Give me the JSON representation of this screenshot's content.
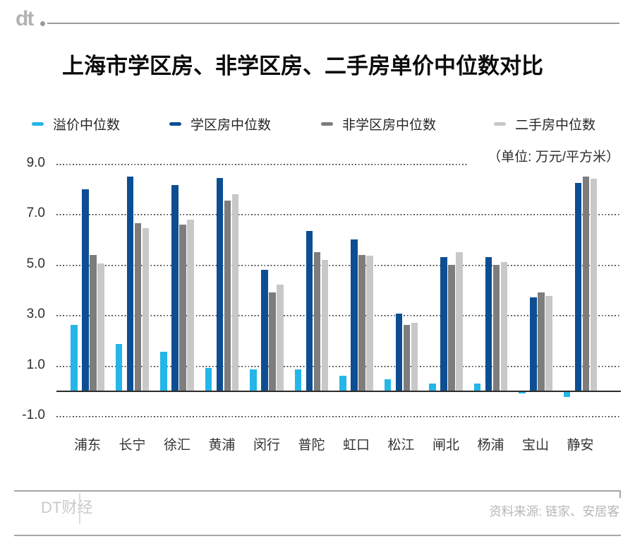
{
  "header": {
    "logo_text": "dt"
  },
  "title": "上海市学区房、非学区房、二手房单价中位数对比",
  "unit_label": "（单位: 万元/平方米）",
  "footer": {
    "brand": "DT财经",
    "source": "资料来源: 链家、安居客"
  },
  "colors": {
    "premium": "#24b6e9",
    "school": "#0d4e92",
    "nonschool": "#7d7d7d",
    "secondhand": "#c8c8c8",
    "axis_text": "#333333",
    "footer_text": "#c0c0c0"
  },
  "legend_x_positions": [
    45,
    240,
    455,
    700
  ],
  "chart_data": {
    "type": "bar",
    "title": "上海市学区房、非学区房、二手房单价中位数对比",
    "xlabel": "",
    "ylabel": "万元/平方米",
    "categories": [
      "浦东",
      "长宁",
      "徐汇",
      "黄浦",
      "闵行",
      "普陀",
      "虹口",
      "松江",
      "闸北",
      "杨浦",
      "宝山",
      "静安"
    ],
    "series": [
      {
        "key": "premium",
        "name": "溢价中位数",
        "color": "#24b6e9",
        "values": [
          2.6,
          1.85,
          1.55,
          0.9,
          0.85,
          0.85,
          0.6,
          0.45,
          0.3,
          0.3,
          -0.1,
          -0.25
        ]
      },
      {
        "key": "school",
        "name": "学区房中位数",
        "color": "#0d4e92",
        "values": [
          8.0,
          8.5,
          8.15,
          8.45,
          4.8,
          6.35,
          6.0,
          3.05,
          5.3,
          5.3,
          3.7,
          8.25
        ]
      },
      {
        "key": "nonschool",
        "name": "非学区房中位数",
        "color": "#7d7d7d",
        "values": [
          5.4,
          6.65,
          6.6,
          7.55,
          3.9,
          5.5,
          5.4,
          2.6,
          5.0,
          5.0,
          3.9,
          8.5
        ]
      },
      {
        "key": "secondhand",
        "name": "二手房中位数",
        "color": "#c8c8c8",
        "values": [
          5.05,
          6.45,
          6.8,
          7.8,
          4.2,
          5.2,
          5.35,
          2.7,
          5.5,
          5.1,
          3.75,
          8.4
        ]
      }
    ],
    "yticks": [
      9.0,
      7.0,
      5.0,
      3.0,
      1.0,
      -1.0
    ],
    "ylim": [
      -1.0,
      9.0
    ],
    "grid": "horizontal-dotted",
    "legend_position": "top"
  }
}
